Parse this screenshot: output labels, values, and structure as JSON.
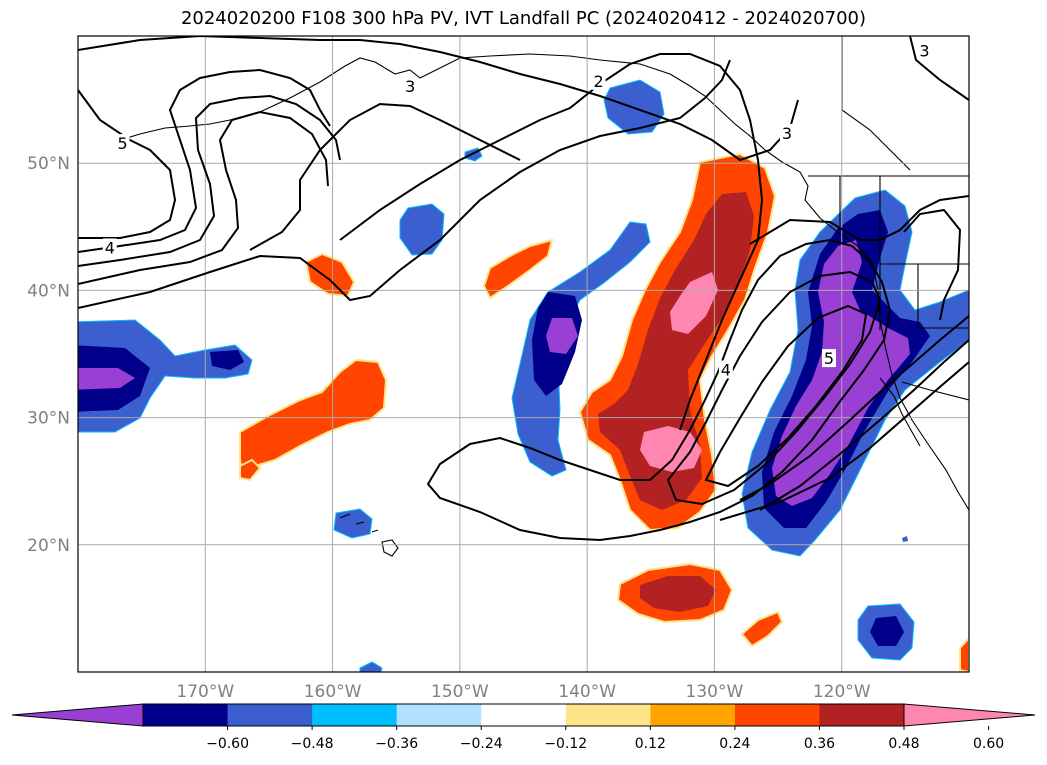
{
  "title": "2024020200 F108 300 hPa PV, IVT Landfall PC (2024020412 - 2024020700)",
  "map": {
    "lon_range": [
      -180,
      -110
    ],
    "lat_range": [
      10,
      60
    ],
    "lon_ticks": [
      {
        "value": -170,
        "label": "170°W"
      },
      {
        "value": -160,
        "label": "160°W"
      },
      {
        "value": -150,
        "label": "150°W"
      },
      {
        "value": -140,
        "label": "140°W"
      },
      {
        "value": -130,
        "label": "130°W"
      },
      {
        "value": -120,
        "label": "120°W"
      }
    ],
    "lat_ticks": [
      {
        "value": 20,
        "label": "20°N"
      },
      {
        "value": 30,
        "label": "30°N"
      },
      {
        "value": 40,
        "label": "40°N"
      },
      {
        "value": 50,
        "label": "50°N"
      }
    ],
    "grid": true,
    "contour_labels": [
      {
        "text": "5",
        "lon": -176.5,
        "lat": 51.5
      },
      {
        "text": "4",
        "lon": -177.5,
        "lat": 43.3
      },
      {
        "text": "3",
        "lon": -153.9,
        "lat": 56.0
      },
      {
        "text": "2",
        "lon": -139.1,
        "lat": 56.4
      },
      {
        "text": "3",
        "lon": -124.3,
        "lat": 52.3
      },
      {
        "text": "3",
        "lon": -113.5,
        "lat": 58.8
      },
      {
        "text": "4",
        "lon": -129.1,
        "lat": 33.7
      },
      {
        "text": "5",
        "lon": -121.0,
        "lat": 34.6
      }
    ]
  },
  "colorbar": {
    "colors": [
      "#9a3fd3",
      "#00008b",
      "#3b5fcf",
      "#00bfff",
      "#b0e2ff",
      "#ffffff",
      "#ffe48a",
      "#ffa500",
      "#ff4500",
      "#b22222",
      "#ff86b0"
    ],
    "tick_labels": [
      "−0.60",
      "−0.48",
      "−0.36",
      "−0.24",
      "−0.12",
      "0.12",
      "0.24",
      "0.36",
      "0.48",
      "0.60"
    ],
    "extend": "both"
  },
  "legend_note": ""
}
